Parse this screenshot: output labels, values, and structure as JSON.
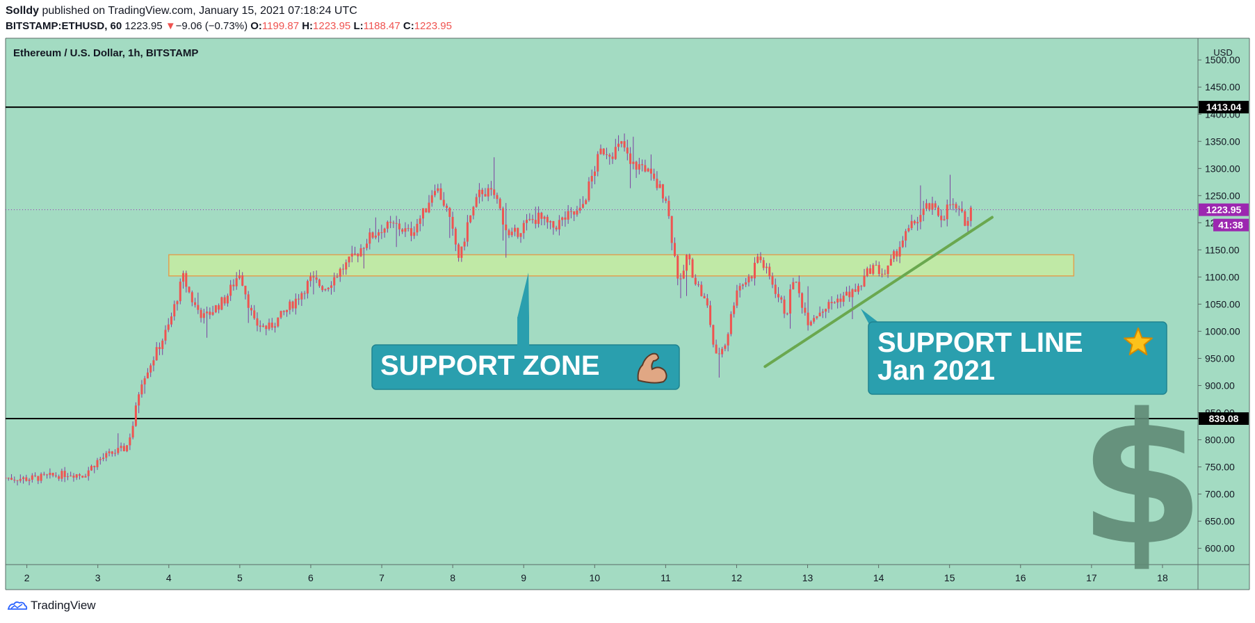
{
  "header": {
    "author": "Solldy",
    "published_text": " published on TradingView.com, January 15, 2021 07:18:24 UTC",
    "symbol": "BITSTAMP:ETHUSD, 60",
    "last_price": "1223.95",
    "change_arrow": "▼",
    "change_text": "−9.06 (−0.73%)",
    "open_label": "O:",
    "open_value": "1199.87",
    "high_label": "H:",
    "high_value": "1223.95",
    "low_label": "L:",
    "low_value": "1188.47",
    "close_label": "C:",
    "close_value": "1223.95"
  },
  "pane": {
    "title": "Ethereum / U.S. Dollar, 1h, BITSTAMP",
    "currency": "USD",
    "price_tag": "1223.95",
    "countdown": "41:38",
    "level_high": "1413.04",
    "level_low": "839.08",
    "annotation_zone": "SUPPORT ZONE",
    "annotation_line_1": "SUPPORT LINE",
    "annotation_line_2": "Jan 2021",
    "annotation_zone_icon": "flexed-biceps-icon",
    "annotation_line_icon": "star-icon",
    "watermark_icon": "dollar-sign-icon"
  },
  "footer": {
    "brand": "TradingView",
    "logo_icon": "tradingview-logo-icon"
  },
  "colors": {
    "background": "#a3dbc2",
    "up": "#ef5350",
    "down": "#ef5350",
    "zone_fill": "#c5eba1",
    "zone_border": "#e0a050",
    "trendline": "#6aa84f",
    "callout": "#2a9fae",
    "dollar": "#5f8a76",
    "price_tag": "#9c27b0"
  },
  "chart_data": {
    "type": "candlestick",
    "title": "Ethereum / U.S. Dollar, 1h, BITSTAMP",
    "x_tick_labels": [
      "2",
      "3",
      "4",
      "5",
      "6",
      "7",
      "8",
      "9",
      "10",
      "11",
      "12",
      "13",
      "14",
      "15",
      "16",
      "17",
      "18"
    ],
    "y_tick_labels": [
      "600.00",
      "650.00",
      "700.00",
      "750.00",
      "800.00",
      "850.00",
      "900.00",
      "950.00",
      "1000.00",
      "1050.00",
      "1100.00",
      "1150.00",
      "1200.00",
      "1250.00",
      "1300.00",
      "1350.00",
      "1400.00",
      "1450.00",
      "1500.00"
    ],
    "ylim": [
      570,
      1540
    ],
    "xlim": [
      1.7,
      18.5
    ],
    "horizontal_levels": [
      1413.04,
      839.08
    ],
    "last_price": 1223.95,
    "support_zone": {
      "x_start": 4.0,
      "x_end": 16.75,
      "y_low": 1102,
      "y_high": 1141
    },
    "support_line": {
      "x1": 12.4,
      "y1": 935,
      "x2": 15.6,
      "y2": 1210
    },
    "price_path": [
      [
        1.7,
        730
      ],
      [
        2.0,
        728
      ],
      [
        2.3,
        732
      ],
      [
        2.6,
        738
      ],
      [
        2.8,
        735
      ],
      [
        3.0,
        762
      ],
      [
        3.2,
        775
      ],
      [
        3.4,
        785
      ],
      [
        3.5,
        830
      ],
      [
        3.6,
        905
      ],
      [
        3.8,
        955
      ],
      [
        4.0,
        1010
      ],
      [
        4.2,
        1100
      ],
      [
        4.35,
        1050
      ],
      [
        4.5,
        1025
      ],
      [
        4.8,
        1060
      ],
      [
        5.0,
        1110
      ],
      [
        5.2,
        1015
      ],
      [
        5.4,
        1005
      ],
      [
        5.6,
        1030
      ],
      [
        5.8,
        1060
      ],
      [
        6.0,
        1095
      ],
      [
        6.2,
        1080
      ],
      [
        6.4,
        1110
      ],
      [
        6.6,
        1135
      ],
      [
        6.8,
        1170
      ],
      [
        7.0,
        1190
      ],
      [
        7.2,
        1195
      ],
      [
        7.4,
        1180
      ],
      [
        7.6,
        1220
      ],
      [
        7.75,
        1270
      ],
      [
        7.9,
        1230
      ],
      [
        8.0,
        1180
      ],
      [
        8.1,
        1130
      ],
      [
        8.2,
        1195
      ],
      [
        8.4,
        1260
      ],
      [
        8.6,
        1250
      ],
      [
        8.8,
        1170
      ],
      [
        9.0,
        1195
      ],
      [
        9.2,
        1210
      ],
      [
        9.4,
        1190
      ],
      [
        9.6,
        1210
      ],
      [
        9.8,
        1220
      ],
      [
        10.0,
        1300
      ],
      [
        10.1,
        1335
      ],
      [
        10.25,
        1330
      ],
      [
        10.4,
        1345
      ],
      [
        10.5,
        1305
      ],
      [
        10.7,
        1305
      ],
      [
        10.8,
        1280
      ],
      [
        11.0,
        1250
      ],
      [
        11.1,
        1160
      ],
      [
        11.2,
        1080
      ],
      [
        11.3,
        1140
      ],
      [
        11.4,
        1100
      ],
      [
        11.6,
        1040
      ],
      [
        11.7,
        950
      ],
      [
        11.85,
        980
      ],
      [
        12.0,
        1080
      ],
      [
        12.2,
        1100
      ],
      [
        12.3,
        1140
      ],
      [
        12.5,
        1090
      ],
      [
        12.7,
        1030
      ],
      [
        12.8,
        1100
      ],
      [
        13.0,
        1020
      ],
      [
        13.2,
        1040
      ],
      [
        13.5,
        1065
      ],
      [
        13.7,
        1075
      ],
      [
        13.9,
        1120
      ],
      [
        14.1,
        1105
      ],
      [
        14.3,
        1160
      ],
      [
        14.5,
        1200
      ],
      [
        14.7,
        1230
      ],
      [
        14.9,
        1210
      ],
      [
        15.0,
        1235
      ],
      [
        15.15,
        1215
      ],
      [
        15.25,
        1200
      ],
      [
        15.3,
        1223.95
      ]
    ]
  }
}
